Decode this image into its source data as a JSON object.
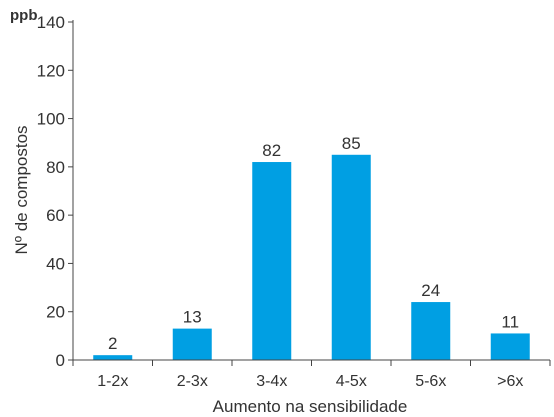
{
  "corner_label": "ppb",
  "colors": {
    "bar": "#009fe3",
    "axis": "#444444",
    "text": "#333333"
  },
  "chart_data": {
    "type": "bar",
    "title": "",
    "xlabel": "Aumento na sensibilidade",
    "ylabel": "Nº de compostos",
    "categories": [
      "1-2x",
      "2-3x",
      "3-4x",
      "4-5x",
      "5-6x",
      ">6x"
    ],
    "values": [
      2,
      13,
      82,
      85,
      24,
      11
    ],
    "ylim": [
      0,
      140
    ],
    "yticks": [
      0,
      20,
      40,
      60,
      80,
      100,
      120,
      140
    ],
    "grid": false,
    "data_labels": true
  }
}
